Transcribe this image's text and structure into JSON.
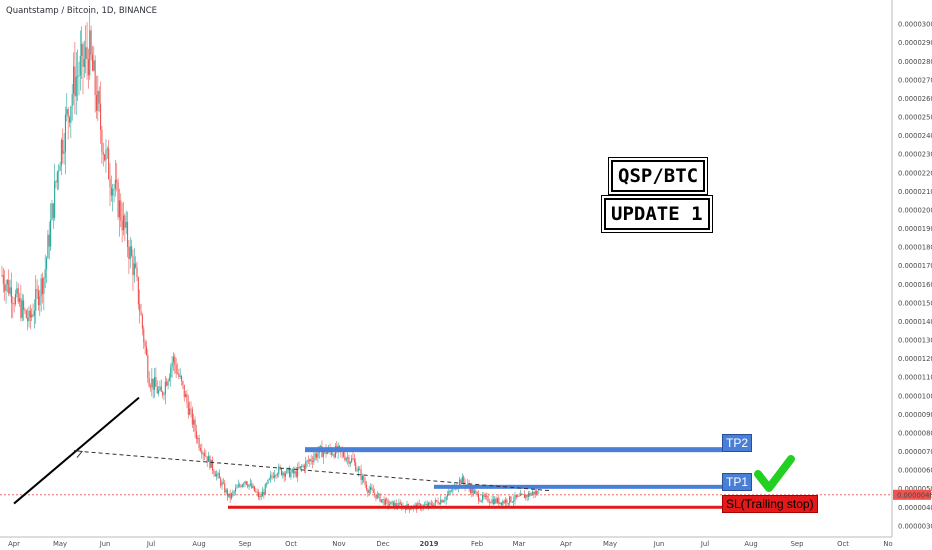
{
  "header": {
    "title": "Quantstamp / Bitcoin, 1D, BINANCE"
  },
  "badges": {
    "pair": "QSP/BTC",
    "update": "UPDATE 1"
  },
  "labels": {
    "tp2": "TP2",
    "tp1": "TP1",
    "sl": "SL(Trailing stop)"
  },
  "colors": {
    "up": "#26a69a",
    "down": "#ef5350",
    "tp": "#4a7fd8",
    "sl": "#e21a1a",
    "check": "#22d022",
    "current": "#ef5350"
  },
  "chart_data": {
    "type": "candlestick",
    "title": "Quantstamp / Bitcoin, 1D, BINANCE",
    "x_ticks": [
      "Apr",
      "May",
      "Jun",
      "Jul",
      "Aug",
      "Sep",
      "Oct",
      "Nov",
      "Dec",
      "2019",
      "Feb",
      "Mar",
      "Apr",
      "May",
      "Jun",
      "Jul",
      "Aug",
      "Sep",
      "Oct",
      "No"
    ],
    "y_ticks": [
      "0.00003000",
      "0.00002900",
      "0.00002800",
      "0.00002700",
      "0.00002600",
      "0.00002500",
      "0.00002400",
      "0.00002300",
      "0.00002200",
      "0.00002100",
      "0.00002000",
      "0.00001900",
      "0.00001800",
      "0.00001700",
      "0.00001600",
      "0.00001500",
      "0.00001400",
      "0.00001300",
      "0.00001200",
      "0.00001100",
      "0.00001000",
      "0.00000900",
      "0.00000800",
      "0.00000700",
      "0.00000600",
      "0.00000500",
      "0.00000400",
      "0.00000300"
    ],
    "ylim": [
      2.4e-06,
      3.13e-05
    ],
    "current_price": "0.00000467",
    "levels": {
      "tp2": 7.1e-06,
      "tp1": 5.1e-06,
      "sl": 4e-06
    },
    "trendline": {
      "from": [
        "Jul",
        9.9e-06
      ],
      "to": [
        "Apr",
        4.2e-06
      ]
    },
    "projection": {
      "from": [
        "Mar",
        4.9e-06
      ],
      "to": [
        "May",
        7e-06
      ]
    },
    "price_path": [
      [
        "Apr",
        1.65e-05
      ],
      [
        "Apr",
        1.4e-05
      ],
      [
        "Apr",
        1.65e-05
      ],
      [
        "May",
        2.3e-05
      ],
      [
        "May",
        2.7e-05
      ],
      [
        "May",
        2.85e-05
      ],
      [
        "Jun",
        2.3e-05
      ],
      [
        "Jun",
        2e-05
      ],
      [
        "Jun",
        1.65e-05
      ],
      [
        "Jul",
        1.1e-05
      ],
      [
        "Jul",
        1e-05
      ],
      [
        "Jul",
        1.2e-05
      ],
      [
        "Jul",
        1e-05
      ],
      [
        "Aug",
        7.5e-06
      ],
      [
        "Aug",
        6e-06
      ],
      [
        "Aug",
        4.5e-06
      ],
      [
        "Sep",
        5.5e-06
      ],
      [
        "Sep",
        4.5e-06
      ],
      [
        "Sep",
        6e-06
      ],
      [
        "Oct",
        5.8e-06
      ],
      [
        "Oct",
        7e-06
      ],
      [
        "Nov",
        7e-06
      ],
      [
        "Nov",
        6.5e-06
      ],
      [
        "Nov",
        5e-06
      ],
      [
        "Dec",
        4.2e-06
      ],
      [
        "Dec",
        4e-06
      ],
      [
        "2019",
        4.1e-06
      ],
      [
        "2019",
        4.5e-06
      ],
      [
        "2019",
        5.5e-06
      ],
      [
        "Feb",
        4.5e-06
      ],
      [
        "Feb",
        4.3e-06
      ],
      [
        "Mar",
        4.5e-06
      ],
      [
        "Mar",
        4.8e-06
      ],
      [
        "Mar",
        4.7e-06
      ]
    ]
  }
}
